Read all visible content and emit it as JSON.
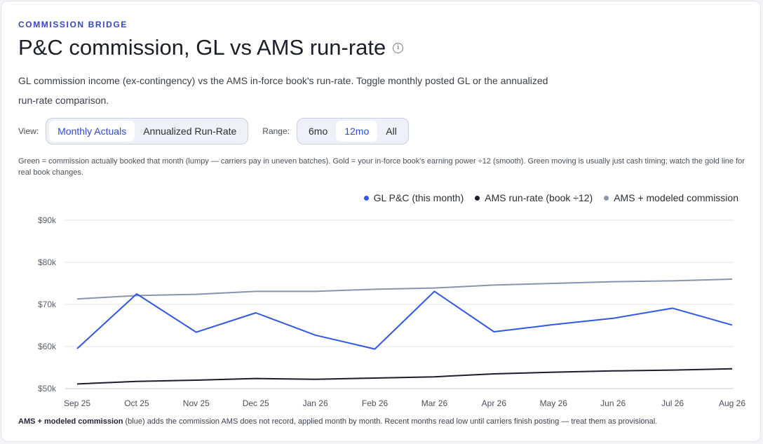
{
  "header": {
    "eyebrow": "COMMISSION BRIDGE",
    "title": "P&C commission, GL vs AMS run-rate",
    "info_glyph": "i",
    "description": "GL commission income (ex-contingency) vs the AMS in-force book's run-rate. Toggle monthly posted GL or the annualized run-rate comparison."
  },
  "controls": {
    "view_label": "View:",
    "view_options": [
      "Monthly Actuals",
      "Annualized Run-Rate"
    ],
    "view_selected": "Monthly Actuals",
    "range_label": "Range:",
    "range_options": [
      "6mo",
      "12mo",
      "All"
    ],
    "range_selected": "12mo"
  },
  "note": "Green = commission actually booked that month (lumpy — carriers pay in uneven batches). Gold = your in-force book's earning power ÷12 (smooth). Green moving is usually just cash timing; watch the gold line for real book changes.",
  "footnote": {
    "bold": "AMS + modeled commission",
    "text": " (blue) adds the commission AMS does not record, applied month by month. Recent months read low until carriers finish posting — treat them as provisional."
  },
  "chart_data": {
    "type": "line",
    "categories": [
      "Sep 25",
      "Oct 25",
      "Nov 25",
      "Dec 25",
      "Jan 26",
      "Feb 26",
      "Mar 26",
      "Apr 26",
      "May 26",
      "Jun 26",
      "Jul 26",
      "Aug 26"
    ],
    "ylim": [
      50000,
      90000
    ],
    "yticks": [
      50000,
      60000,
      70000,
      80000,
      90000
    ],
    "ytick_labels": [
      "$50k",
      "$60k",
      "$70k",
      "$80k",
      "$90k"
    ],
    "grid": true,
    "legend_position": "top-right",
    "series": [
      {
        "name": "GL P&C (this month)",
        "color": "#2f57e8",
        "values": [
          59500,
          72500,
          63400,
          68000,
          62700,
          59400,
          73100,
          63500,
          65200,
          66700,
          69100,
          65100
        ]
      },
      {
        "name": "AMS run-rate (book ÷12)",
        "color": "#1a1f2b",
        "values": [
          51100,
          51700,
          52000,
          52400,
          52200,
          52500,
          52800,
          53500,
          53900,
          54200,
          54400,
          54700
        ]
      },
      {
        "name": "AMS + modeled commission",
        "color": "#8a95ab",
        "values": [
          71300,
          72100,
          72400,
          73100,
          73100,
          73600,
          73900,
          74600,
          75000,
          75400,
          75600,
          76000
        ]
      }
    ]
  }
}
